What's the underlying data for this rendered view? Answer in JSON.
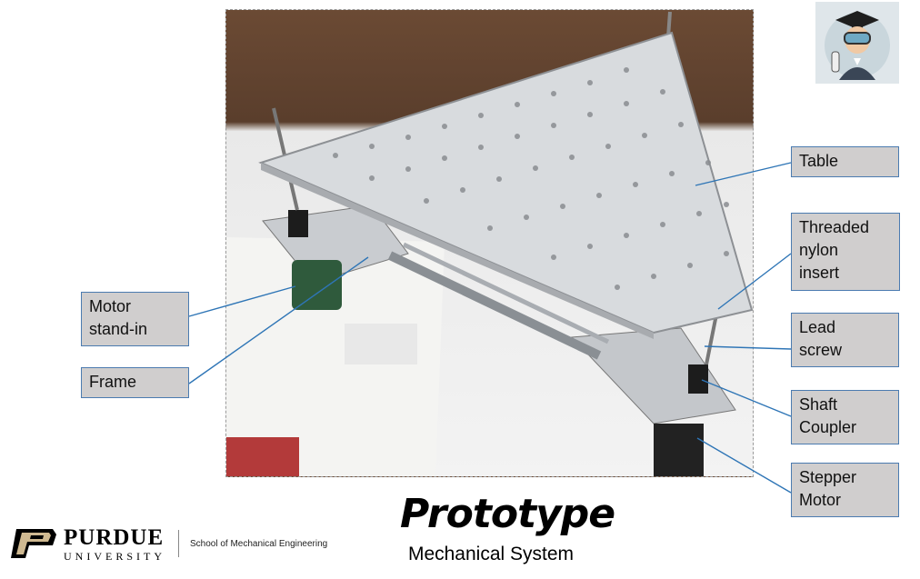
{
  "slide": {
    "title": "Prototype",
    "subtitle": "Mechanical System"
  },
  "labels": {
    "table": "Table",
    "threaded_nylon_insert": [
      "Threaded",
      "nylon",
      "insert"
    ],
    "lead_screw": [
      "Lead",
      "screw"
    ],
    "shaft_coupler": [
      "Shaft",
      "Coupler"
    ],
    "stepper_motor": [
      "Stepper",
      "Motor"
    ],
    "motor_stand_in": [
      "Motor",
      "stand-in"
    ],
    "frame": "Frame"
  },
  "logo": {
    "name": "PURDUE",
    "sub": "UNIVERSITY",
    "department": "School of Mechanical Engineering"
  },
  "colors": {
    "label_fill": "#d0cece",
    "label_border": "#4b7bb0",
    "leader_line": "#2e75b6",
    "purdue_gold": "#cfb991"
  }
}
